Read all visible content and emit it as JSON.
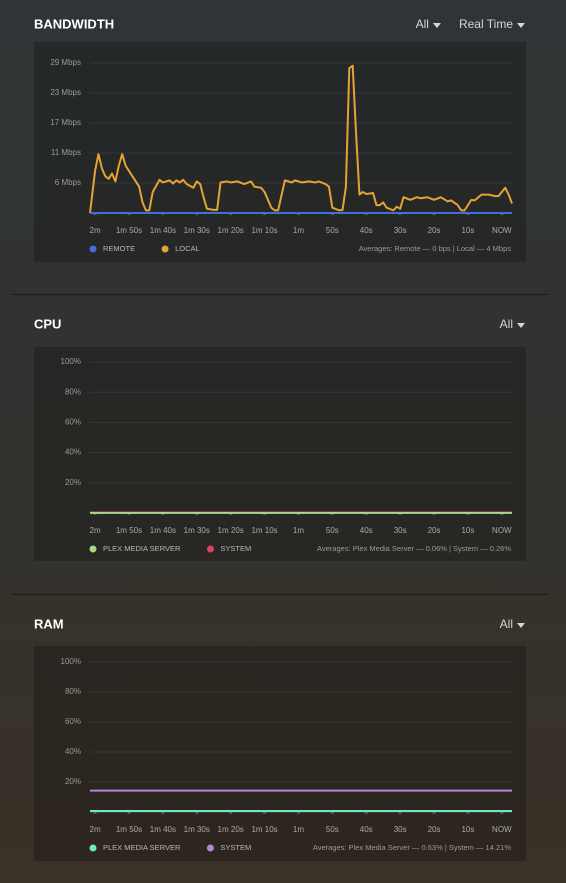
{
  "chart_data": [
    {
      "type": "line",
      "title": "BANDWIDTH",
      "controls": [
        "All",
        "Real Time"
      ],
      "xlim": [
        121.5,
        -3
      ],
      "xticks": [
        {
          "value": 120,
          "label": "2m"
        },
        {
          "value": 110,
          "label": "1m 50s"
        },
        {
          "value": 100,
          "label": "1m 40s"
        },
        {
          "value": 90,
          "label": "1m 30s"
        },
        {
          "value": 80,
          "label": "1m 20s"
        },
        {
          "value": 70,
          "label": "1m 10s"
        },
        {
          "value": 60,
          "label": "1m"
        },
        {
          "value": 50,
          "label": "50s"
        },
        {
          "value": 40,
          "label": "40s"
        },
        {
          "value": 30,
          "label": "30s"
        },
        {
          "value": 20,
          "label": "20s"
        },
        {
          "value": 10,
          "label": "10s"
        },
        {
          "value": 0,
          "label": "NOW"
        }
      ],
      "ylim": [
        0,
        28.5
      ],
      "yticks": [
        {
          "value": 5.7,
          "label": "6 Mbps"
        },
        {
          "value": 11.4,
          "label": "11 Mbps"
        },
        {
          "value": 17.1,
          "label": "17 Mbps"
        },
        {
          "value": 22.8,
          "label": "23 Mbps"
        },
        {
          "value": 28.5,
          "label": "29 Mbps"
        }
      ],
      "grid": true,
      "series": [
        {
          "name": "REMOTE",
          "color": "#3f6fd8",
          "x": [
            121.5,
            -3
          ],
          "values": [
            0,
            0
          ]
        },
        {
          "name": "LOCAL",
          "color": "#e5a235",
          "x": [
            121.5,
            120,
            119,
            118,
            117,
            116,
            115,
            114,
            113,
            112,
            111,
            109,
            107,
            106,
            105,
            104,
            103,
            101,
            100,
            98,
            97,
            96,
            95,
            94,
            93,
            91,
            90,
            89,
            88,
            87,
            85,
            84,
            83,
            81,
            80,
            78,
            76,
            74,
            73,
            71,
            70,
            68,
            67,
            66,
            64,
            62,
            61,
            59,
            57,
            55,
            54,
            52,
            51,
            50,
            48,
            47,
            46,
            45,
            44,
            43,
            42,
            41,
            40,
            38,
            37,
            36,
            35,
            34,
            32,
            31,
            30,
            29,
            27,
            25,
            24,
            22,
            20,
            18,
            16,
            15,
            13,
            12,
            11,
            9,
            8,
            6,
            4,
            2,
            1,
            -1,
            -2,
            -3
          ],
          "values": [
            0,
            8,
            11.2,
            8.5,
            7,
            6.5,
            7.5,
            6,
            9,
            11.2,
            9,
            7,
            5,
            2,
            0.5,
            0.5,
            4,
            6.3,
            5.8,
            6.2,
            5.6,
            6.2,
            5.8,
            6.3,
            5.5,
            4.8,
            6,
            5.5,
            3,
            0.8,
            0.6,
            0.6,
            5.8,
            6,
            5.8,
            6,
            5.5,
            6,
            5,
            4.8,
            4,
            1,
            0.5,
            0.5,
            6.2,
            5.8,
            6.2,
            5.8,
            6,
            5.8,
            6,
            5.5,
            5,
            1,
            0.5,
            0.6,
            5,
            27.5,
            28,
            15,
            3.5,
            4,
            3.6,
            3.8,
            1.5,
            1.5,
            2,
            1,
            0.5,
            1.2,
            0.8,
            3,
            2.5,
            3,
            2.8,
            3,
            2.5,
            3,
            2.2,
            2.4,
            1.5,
            0.5,
            0.5,
            2.5,
            2.4,
            3.5,
            3.5,
            3.2,
            3.2,
            4.8,
            3.5,
            1.8
          ]
        }
      ],
      "annotation": "Averages: Remote — 0 bps | Local — 4 Mbps"
    },
    {
      "type": "line",
      "title": "CPU",
      "controls": [
        "All"
      ],
      "xlim": [
        121.5,
        -3
      ],
      "xticks": [
        {
          "value": 120,
          "label": "2m"
        },
        {
          "value": 110,
          "label": "1m 50s"
        },
        {
          "value": 100,
          "label": "1m 40s"
        },
        {
          "value": 90,
          "label": "1m 30s"
        },
        {
          "value": 80,
          "label": "1m 20s"
        },
        {
          "value": 70,
          "label": "1m 10s"
        },
        {
          "value": 60,
          "label": "1m"
        },
        {
          "value": 50,
          "label": "50s"
        },
        {
          "value": 40,
          "label": "40s"
        },
        {
          "value": 30,
          "label": "30s"
        },
        {
          "value": 20,
          "label": "20s"
        },
        {
          "value": 10,
          "label": "10s"
        },
        {
          "value": 0,
          "label": "NOW"
        }
      ],
      "ylim": [
        0,
        100
      ],
      "yticks": [
        {
          "value": 20,
          "label": "20%"
        },
        {
          "value": 40,
          "label": "40%"
        },
        {
          "value": 60,
          "label": "60%"
        },
        {
          "value": 80,
          "label": "80%"
        },
        {
          "value": 100,
          "label": "100%"
        }
      ],
      "grid": true,
      "series": [
        {
          "name": "PLEX MEDIA SERVER",
          "color": "#a8d88a",
          "x": [
            121.5,
            -3
          ],
          "values": [
            0.06,
            0.06
          ]
        },
        {
          "name": "SYSTEM",
          "color": "#e0405e",
          "x": [
            121.5,
            -3
          ],
          "values": [
            0.26,
            0.26
          ]
        }
      ],
      "annotation": "Averages: Plex Media Server — 0.06% | System — 0.26%"
    },
    {
      "type": "line",
      "title": "RAM",
      "controls": [
        "All"
      ],
      "xlim": [
        121.5,
        -3
      ],
      "xticks": [
        {
          "value": 120,
          "label": "2m"
        },
        {
          "value": 110,
          "label": "1m 50s"
        },
        {
          "value": 100,
          "label": "1m 40s"
        },
        {
          "value": 90,
          "label": "1m 30s"
        },
        {
          "value": 80,
          "label": "1m 20s"
        },
        {
          "value": 70,
          "label": "1m 10s"
        },
        {
          "value": 60,
          "label": "1m"
        },
        {
          "value": 50,
          "label": "50s"
        },
        {
          "value": 40,
          "label": "40s"
        },
        {
          "value": 30,
          "label": "30s"
        },
        {
          "value": 20,
          "label": "20s"
        },
        {
          "value": 10,
          "label": "10s"
        },
        {
          "value": 0,
          "label": "NOW"
        }
      ],
      "ylim": [
        0,
        100
      ],
      "yticks": [
        {
          "value": 20,
          "label": "20%"
        },
        {
          "value": 40,
          "label": "40%"
        },
        {
          "value": 60,
          "label": "60%"
        },
        {
          "value": 80,
          "label": "80%"
        },
        {
          "value": 100,
          "label": "100%"
        }
      ],
      "grid": true,
      "series": [
        {
          "name": "PLEX MEDIA SERVER",
          "color": "#6ee8c4",
          "x": [
            121.5,
            -3
          ],
          "values": [
            0.63,
            0.63
          ]
        },
        {
          "name": "SYSTEM",
          "color": "#b487d0",
          "x": [
            121.5,
            -3
          ],
          "values": [
            14.21,
            14.21
          ]
        }
      ],
      "annotation": "Averages: Plex Media Server — 0.63% | System — 14.21%"
    }
  ]
}
